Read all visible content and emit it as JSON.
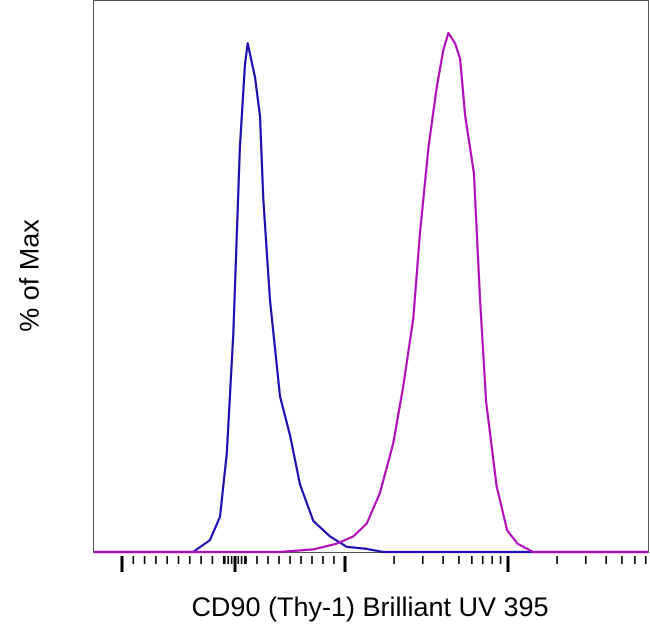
{
  "chart_data": {
    "type": "line",
    "title": "",
    "xlabel": "CD90 (Thy-1) Brilliant UV 395",
    "ylabel": "% of Max",
    "x_scale": "biexponential",
    "xlim": [
      -1257,
      72300
    ],
    "ylim": [
      0,
      106
    ],
    "grid": false,
    "x_major_ticks": [
      -1000,
      0,
      1000,
      10000
    ],
    "series": [
      {
        "color": "#1f10b0",
        "x": [
          -372,
          -221,
          -133,
          -73,
          -15,
          45,
          91,
          115,
          182,
          227,
          257,
          318,
          409,
          500,
          591,
          712,
          864,
          1024,
          1360,
          1718
        ],
        "y": [
          0,
          2.3,
          6.8,
          19,
          42,
          78,
          94,
          98,
          91.5,
          84,
          68,
          48.5,
          30,
          22.5,
          13,
          6,
          3,
          1,
          0.6,
          0
        ]
      },
      {
        "color": "#b010b8",
        "x": [
          409,
          712,
          924,
          1124,
          1360,
          1640,
          1978,
          2277,
          2623,
          2883,
          3253,
          3654,
          4007,
          4308,
          4737,
          5085,
          5460,
          6180,
          6738,
          7338,
          8509,
          9867,
          11440,
          14270
        ],
        "y": [
          0,
          0.5,
          1.6,
          3,
          5.5,
          11.4,
          21,
          32,
          45,
          61.5,
          78,
          89.5,
          96.7,
          100,
          98,
          95,
          84,
          73,
          48.5,
          29,
          12.7,
          4.2,
          1.6,
          0
        ]
      }
    ]
  }
}
